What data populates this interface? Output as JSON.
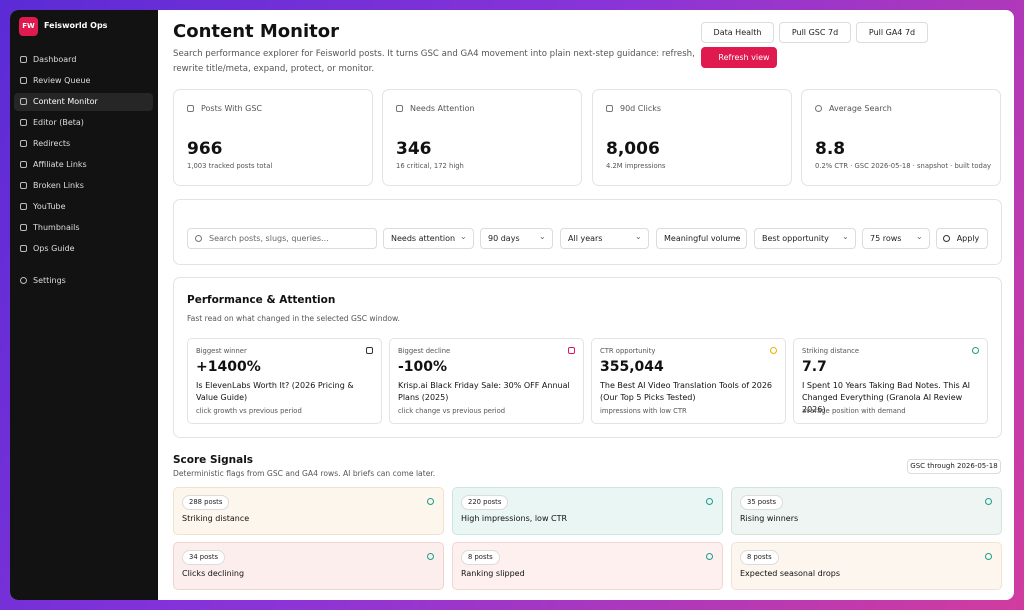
{
  "app": {
    "logo": "FW",
    "name": "Feisworld Ops"
  },
  "nav": [
    "Dashboard",
    "Review Queue",
    "Content Monitor",
    "Editor (Beta)",
    "Redirects",
    "Affiliate Links",
    "Broken Links",
    "YouTube",
    "Thumbnails",
    "Ops Guide"
  ],
  "settings": "Settings",
  "header": {
    "title": "Content Monitor",
    "description": "Search performance explorer for Feisworld posts. It turns GSC and GA4 movement into plain next-step guidance: refresh, rewrite title/meta, expand, protect, or monitor.",
    "buttons": [
      "Data Health",
      "Pull GSC 7d",
      "Pull GA4 7d"
    ],
    "refresh": "Refresh view"
  },
  "stats": [
    {
      "label": "Posts With GSC",
      "value": "966",
      "note": "1,003 tracked posts total"
    },
    {
      "label": "Needs Attention",
      "value": "346",
      "note": "16 critical, 172 high"
    },
    {
      "label": "90d Clicks",
      "value": "8,006",
      "note": "4.2M impressions"
    },
    {
      "label": "Average Search",
      "value": "8.8",
      "note": "0.2% CTR · GSC 2026-05-18 · snapshot · built today"
    }
  ],
  "filters": {
    "search": "Search posts, slugs, queries...",
    "selects": [
      "Needs attention",
      "90 days",
      "All years",
      "Meaningful volume",
      "Best opportunity",
      "75 rows"
    ],
    "apply": "Apply"
  },
  "performance": {
    "title": "Performance & Attention",
    "subtitle": "Fast read on what changed in the selected GSC window.",
    "cards": [
      {
        "kicker": "Biggest winner",
        "value": "+1400%",
        "headline": "Is ElevenLabs Worth It? (2026 Pricing & Value Guide)",
        "note": "click growth vs previous period"
      },
      {
        "kicker": "Biggest decline",
        "value": "-100%",
        "headline": "Krisp.ai Black Friday Sale: 30% OFF Annual Plans (2025)",
        "note": "click change vs previous period"
      },
      {
        "kicker": "CTR opportunity",
        "value": "355,044",
        "headline": "The Best AI Video Translation Tools of 2026 (Our Top 5 Picks Tested)",
        "note": "impressions with low CTR"
      },
      {
        "kicker": "Striking distance",
        "value": "7.7",
        "headline": "I Spent 10 Years Taking Bad Notes. This AI Changed Everything (Granola AI Review 2026)",
        "note": "average position with demand"
      }
    ]
  },
  "signals": {
    "title": "Score Signals",
    "subtitle": "Deterministic flags from GSC and GA4 rows. AI briefs can come later.",
    "badge": "GSC through 2026-05-18",
    "cards": [
      {
        "count": "288 posts",
        "label": "Striking distance"
      },
      {
        "count": "220 posts",
        "label": "High impressions, low CTR"
      },
      {
        "count": "35 posts",
        "label": "Rising winners"
      },
      {
        "count": "34 posts",
        "label": "Clicks declining"
      },
      {
        "count": "8 posts",
        "label": "Ranking slipped"
      },
      {
        "count": "8 posts",
        "label": "Expected seasonal drops"
      }
    ]
  }
}
